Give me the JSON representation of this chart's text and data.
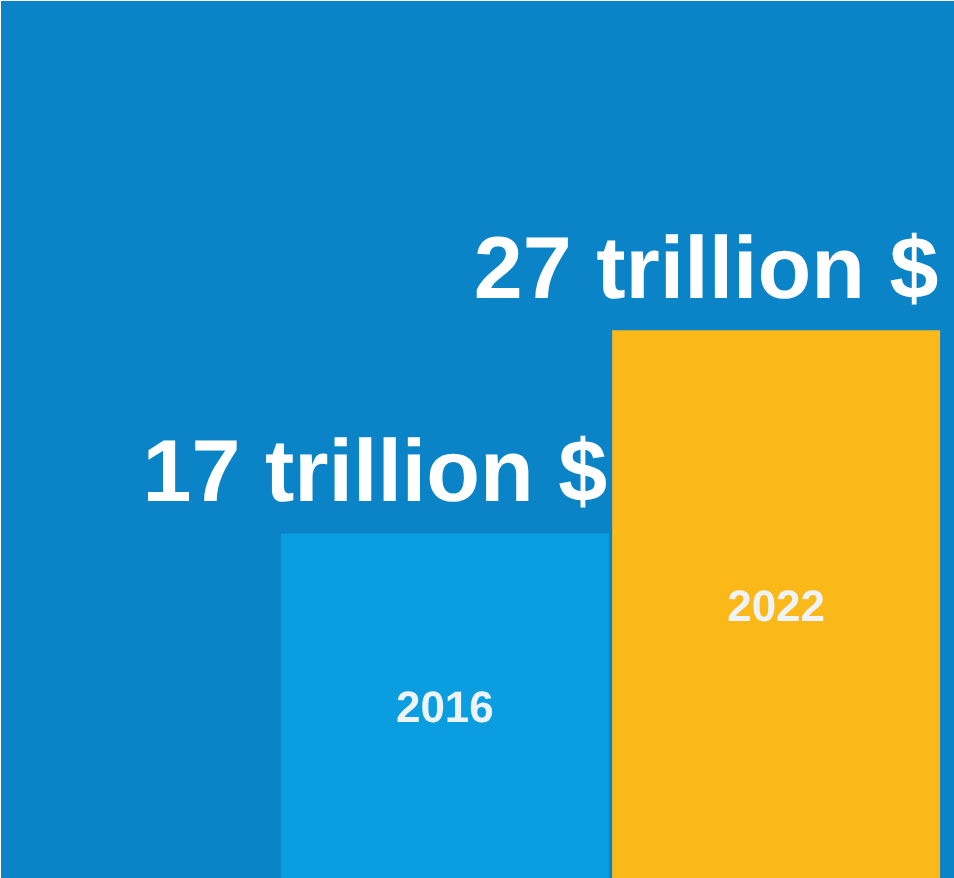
{
  "chart_data": {
    "type": "bar",
    "categories": [
      "2016",
      "2022"
    ],
    "values": [
      17,
      27
    ],
    "colors": [
      "#0a9ee0",
      "#fbb819"
    ],
    "value_labels": [
      "17 trillion $",
      "27 trillion $"
    ],
    "grid": false,
    "tick_labels": false
  }
}
